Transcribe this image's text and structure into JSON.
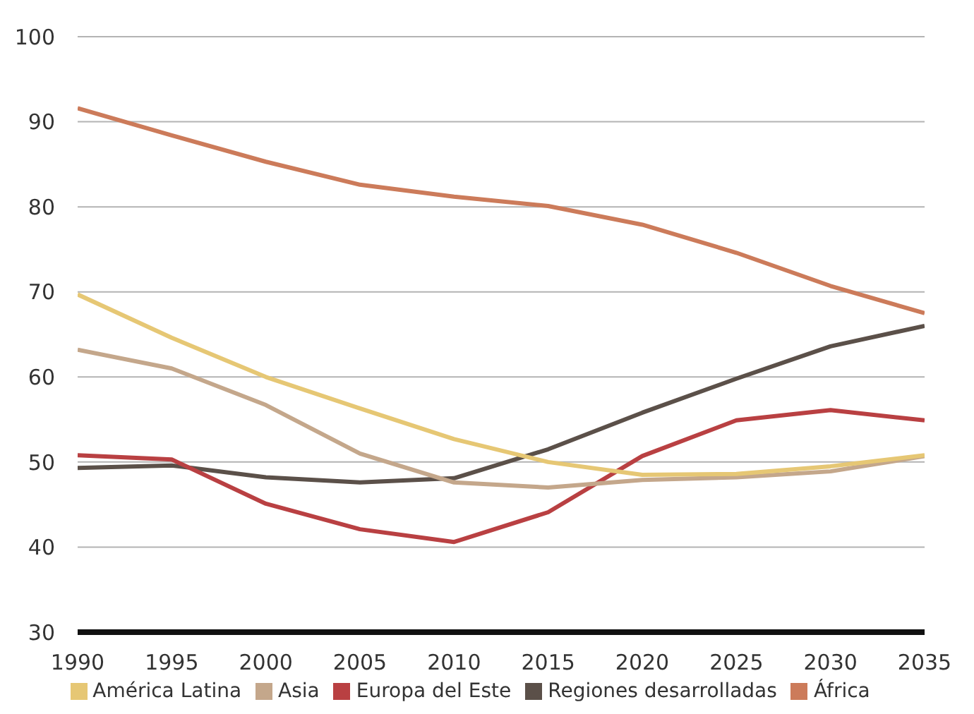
{
  "chart_data": {
    "type": "line",
    "x": [
      1990,
      1995,
      2000,
      2005,
      2010,
      2015,
      2020,
      2025,
      2030,
      2035
    ],
    "series": [
      {
        "name": "Regiones desarrolladas",
        "color": "#5b5049",
        "values": [
          49.3,
          49.6,
          48.2,
          47.6,
          48.1,
          51.5,
          55.8,
          59.8,
          63.6,
          66.0
        ]
      },
      {
        "name": "África",
        "color": "#cc7b5a",
        "values": [
          91.6,
          88.4,
          85.3,
          82.6,
          81.2,
          80.1,
          77.9,
          74.6,
          70.7,
          67.5
        ]
      },
      {
        "name": "Europa del Este",
        "color": "#b94042",
        "values": [
          50.8,
          50.3,
          45.1,
          42.1,
          40.6,
          44.1,
          50.7,
          54.9,
          56.1,
          54.9
        ]
      },
      {
        "name": "Asia",
        "color": "#c4a78b",
        "values": [
          63.2,
          61.0,
          56.7,
          51.0,
          47.6,
          47.0,
          47.9,
          48.2,
          48.9,
          50.7
        ]
      },
      {
        "name": "América Latina",
        "color": "#e6c774",
        "values": [
          69.7,
          64.6,
          60.0,
          56.3,
          52.7,
          50.0,
          48.5,
          48.6,
          49.5,
          50.8
        ]
      }
    ],
    "xlim": [
      1990,
      2035
    ],
    "xticks": [
      1990,
      1995,
      2000,
      2005,
      2010,
      2015,
      2020,
      2025,
      2030,
      2035
    ],
    "ylim": [
      30,
      100
    ],
    "yticks": [
      30,
      40,
      50,
      60,
      70,
      80,
      90,
      100
    ],
    "grid": "y",
    "legend": "bottom",
    "marker": "none",
    "line_style": "solid"
  }
}
